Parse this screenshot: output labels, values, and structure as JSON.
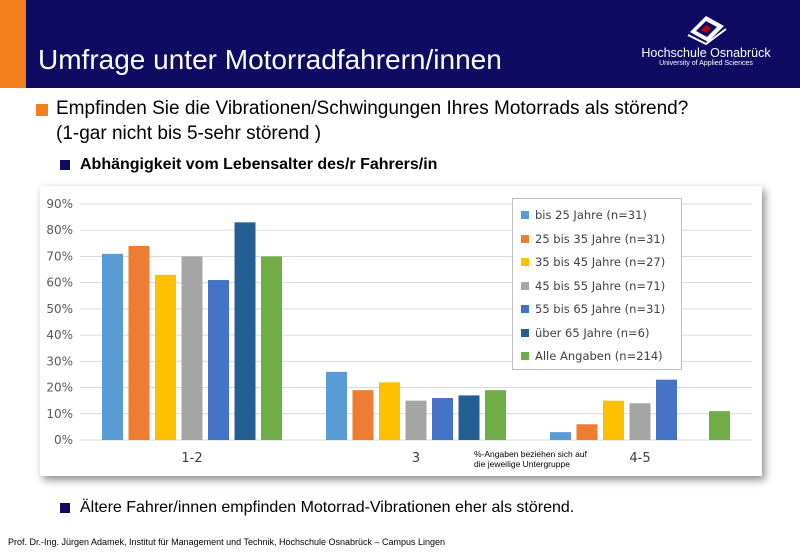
{
  "header": {
    "title": "Umfrage unter Motorradfahrern/innen",
    "logo_name": "Hochschule Osnabrück",
    "logo_subtitle": "University of Applied Sciences",
    "header_color": "#0f0b63",
    "accent_color": "#f27f1c"
  },
  "content": {
    "question_line1": "Empfinden Sie die Vibrationen/Schwingungen Ihres Motorrads als störend?",
    "question_line2": "(1-gar nicht bis 5-sehr störend )",
    "subheading": "Abhängigkeit vom Lebensalter des/r Fahrers/in",
    "conclusion": "Ältere Fahrer/innen empfinden Motorrad-Vibrationen eher als störend.",
    "footer": "Prof. Dr.-Ing. Jürgen Adamek, Institut für Management und Technik, Hochschule Osnabrück – Campus Lingen"
  },
  "chart_data": {
    "type": "bar",
    "title": "",
    "xlabel": "",
    "ylabel": "",
    "categories": [
      "1-2",
      "3",
      "4-5"
    ],
    "ylim": [
      0,
      0.9
    ],
    "yticks": [
      "0%",
      "10%",
      "20%",
      "30%",
      "40%",
      "50%",
      "60%",
      "70%",
      "80%",
      "90%"
    ],
    "grid": true,
    "legend_position": "top-right",
    "series": [
      {
        "name": "bis 25 Jahre (n=31)",
        "color": "#5b9bd5",
        "values": [
          0.71,
          0.26,
          0.03
        ]
      },
      {
        "name": "25 bis 35 Jahre (n=31)",
        "color": "#ed7d31",
        "values": [
          0.74,
          0.19,
          0.06
        ]
      },
      {
        "name": "35 bis 45 Jahre (n=27)",
        "color": "#ffc000",
        "values": [
          0.63,
          0.22,
          0.15
        ]
      },
      {
        "name": "45 bis 55 Jahre (n=71)",
        "color": "#a5a5a5",
        "values": [
          0.7,
          0.15,
          0.14
        ]
      },
      {
        "name": "55 bis 65 Jahre (n=31)",
        "color": "#4472c4",
        "values": [
          0.61,
          0.16,
          0.23
        ]
      },
      {
        "name": "über 65 Jahre (n=6)",
        "color": "#255e91",
        "values": [
          0.83,
          0.17,
          0.0
        ]
      },
      {
        "name": "Alle Angaben (n=214)",
        "color": "#70ad47",
        "values": [
          0.7,
          0.19,
          0.11
        ]
      }
    ],
    "annotation_line1": "%-Angaben  beziehen sich auf",
    "annotation_line2": "die jeweilige Untergruppe"
  }
}
